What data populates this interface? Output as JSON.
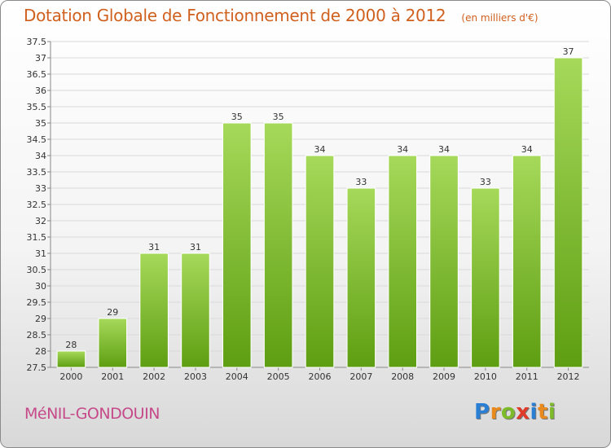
{
  "unit_note": "(en milliers d'€)",
  "commune": "MéNIL-GONDOUIN",
  "brand": {
    "letters": [
      "P",
      "r",
      "o",
      "x",
      "i",
      "t",
      "i"
    ],
    "colors": [
      "#2a7fd4",
      "#e98a1c",
      "#7dbb2a",
      "#e03a2a",
      "#2a7fd4",
      "#e98a1c",
      "#7dbb2a"
    ]
  },
  "chart_data": {
    "type": "bar",
    "title": "Dotation Globale de Fonctionnement de 2000 à 2012",
    "xlabel": "",
    "ylabel": "",
    "categories": [
      "2000",
      "2001",
      "2002",
      "2003",
      "2004",
      "2005",
      "2006",
      "2007",
      "2008",
      "2009",
      "2010",
      "2011",
      "2012"
    ],
    "values": [
      28,
      29,
      31,
      31,
      35,
      35,
      34,
      33,
      34,
      34,
      33,
      34,
      37
    ],
    "ylim": [
      27.5,
      37.5
    ],
    "yticks": [
      "27.5",
      "28",
      "28.5",
      "29",
      "29.5",
      "30",
      "30.5",
      "31",
      "31.5",
      "32",
      "32.5",
      "33",
      "33.5",
      "34",
      "34.5",
      "35",
      "35.5",
      "36",
      "36.5",
      "37",
      "37.5"
    ],
    "grid": true,
    "bar_color_light": "#a6d95a",
    "bar_color_dark": "#5e9e12",
    "legend": "none"
  }
}
